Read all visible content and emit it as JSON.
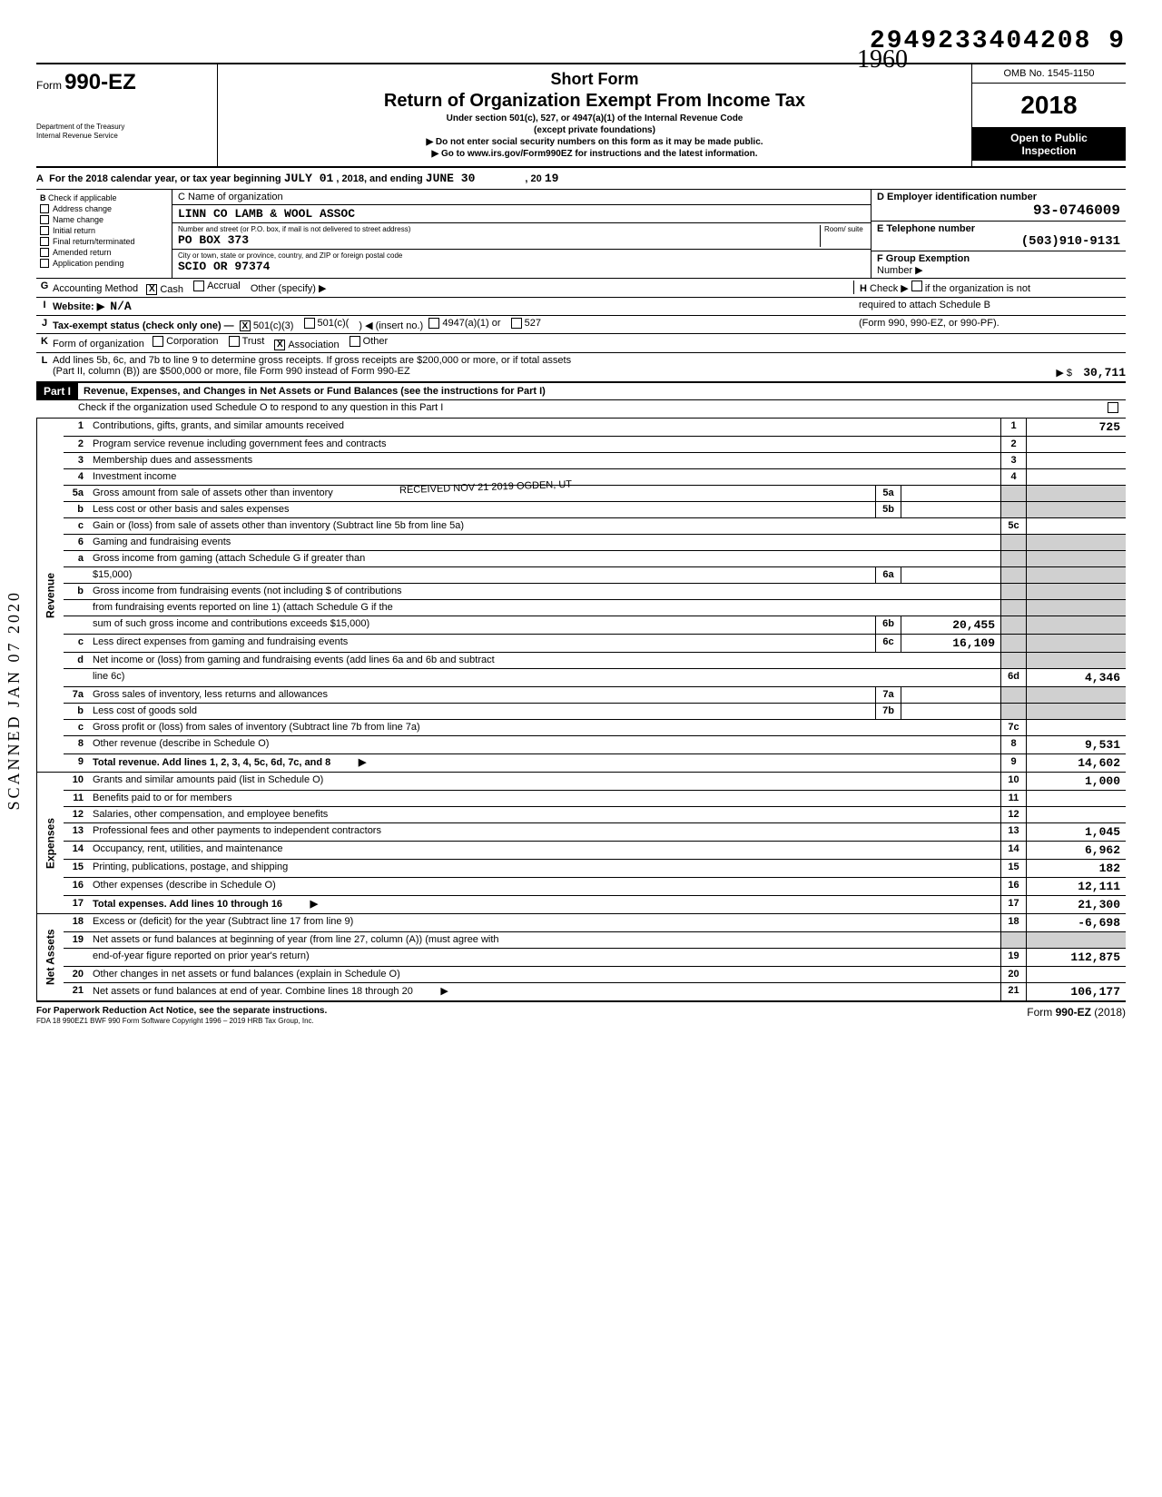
{
  "top_number": "2949233404208  9",
  "handwritten_year": "1960",
  "form": {
    "label": "Form",
    "number": "990-EZ",
    "dept1": "Department of the Treasury",
    "dept2": "Internal Revenue Service"
  },
  "header": {
    "short_form": "Short Form",
    "title": "Return of Organization Exempt From Income Tax",
    "sub1": "Under section 501(c), 527, or 4947(a)(1) of the Internal Revenue Code",
    "sub2": "(except private foundations)",
    "arrow1": "▶ Do not enter social security numbers on this form as it may be made public.",
    "arrow2": "▶ Go to www.irs.gov/Form990EZ for instructions and the latest information.",
    "omb": "OMB No. 1545-1150",
    "year": "2018",
    "open1": "Open to Public",
    "open2": "Inspection"
  },
  "lineA": {
    "prefix": "For the 2018 calendar year, or tax year beginning",
    "begin": "JULY 01",
    "mid": ", 2018, and ending",
    "end": "JUNE 30",
    "suffix": ", 20",
    "yy": "19"
  },
  "B": {
    "header": "Check if applicable",
    "items": [
      "Address change",
      "Name change",
      "Initial return",
      "Final return/terminated",
      "Amended return",
      "Application pending"
    ]
  },
  "C": {
    "label": "C  Name of organization",
    "name": "LINN CO LAMB & WOOL ASSOC",
    "street_label": "Number and street (or P.O. box, if mail is not delivered to street address)",
    "room_label": "Room/\nsuite",
    "street": "PO BOX 373",
    "city_label": "City or town, state or province, country, and ZIP or foreign postal code",
    "city": "SCIO OR 97374"
  },
  "D": {
    "label": "D  Employer identification number",
    "value": "93-0746009"
  },
  "E": {
    "label": "E  Telephone number",
    "value": "(503)910-9131"
  },
  "F": {
    "label": "F  Group Exemption",
    "label2": "Number  ▶"
  },
  "G": {
    "label": "Accounting Method",
    "cash": "Cash",
    "accrual": "Accrual",
    "other": "Other (specify) ▶"
  },
  "H": {
    "label": "Check ▶",
    "text": "if the organization is not",
    "text2": "required to attach Schedule B",
    "text3": "(Form 990, 990-EZ, or 990-PF)."
  },
  "I": {
    "label": "Website: ▶",
    "value": "N/A"
  },
  "J": {
    "label": "Tax-exempt status (check only one) —",
    "opts": [
      "501(c)(3)",
      "501(c)(",
      "◀ (insert no.)",
      "4947(a)(1) or",
      "527"
    ]
  },
  "K": {
    "label": "Form of organization",
    "opts": [
      "Corporation",
      "Trust",
      "Association",
      "Other"
    ]
  },
  "L": {
    "text1": "Add lines 5b, 6c, and 7b to line 9 to determine gross receipts. If gross receipts are $200,000 or more, or if total assets",
    "text2": "(Part II, column (B)) are $500,000 or more, file Form 990 instead of Form 990-EZ",
    "arrow": "▶  $",
    "value": "30,711"
  },
  "partI": {
    "label": "Part I",
    "title": "Revenue, Expenses, and Changes in Net Assets or Fund Balances (see the instructions for Part I)",
    "check_line": "Check if the organization used Schedule O to respond to any question in this Part I"
  },
  "stamp_received": "RECEIVED\nNOV 21 2019\nOGDEN, UT",
  "scanned": "SCANNED  JAN 07 2020",
  "revenue": {
    "label": "Revenue",
    "rows": [
      {
        "n": "1",
        "d": "Contributions, gifts, grants, and similar amounts received",
        "rn": "1",
        "v": "725"
      },
      {
        "n": "2",
        "d": "Program service revenue including government fees and contracts",
        "rn": "2",
        "v": ""
      },
      {
        "n": "3",
        "d": "Membership dues and assessments",
        "rn": "3",
        "v": ""
      },
      {
        "n": "4",
        "d": "Investment income",
        "rn": "4",
        "v": ""
      },
      {
        "n": "5a",
        "d": "Gross amount from sale of assets other than inventory",
        "mn": "5a",
        "mv": "",
        "shade": true
      },
      {
        "n": "b",
        "d": "Less cost or other basis and sales expenses",
        "mn": "5b",
        "mv": "",
        "shade": true
      },
      {
        "n": "c",
        "d": "Gain or (loss) from sale of assets other than inventory (Subtract line 5b from line 5a)",
        "rn": "5c",
        "v": ""
      },
      {
        "n": "6",
        "d": "Gaming and fundraising events"
      },
      {
        "n": "a",
        "d": "Gross income from gaming (attach Schedule G if greater than"
      },
      {
        "n": "",
        "d": "$15,000)",
        "mn": "6a",
        "mv": "",
        "shade": true
      },
      {
        "n": "b",
        "d": "Gross income from fundraising events (not including   $                          of contributions"
      },
      {
        "n": "",
        "d": "from fundraising events reported on line 1) (attach Schedule G if the"
      },
      {
        "n": "",
        "d": "sum of such gross income and contributions exceeds $15,000)",
        "mn": "6b",
        "mv": "20,455",
        "shade": true
      },
      {
        "n": "c",
        "d": "Less  direct expenses from gaming and fundraising events",
        "mn": "6c",
        "mv": "16,109",
        "shade": true
      },
      {
        "n": "d",
        "d": "Net income or (loss) from gaming and fundraising events (add lines 6a and 6b and subtract"
      },
      {
        "n": "",
        "d": "line 6c)",
        "rn": "6d",
        "v": "4,346"
      },
      {
        "n": "7a",
        "d": "Gross sales of inventory, less returns and allowances",
        "mn": "7a",
        "mv": "",
        "shade": true
      },
      {
        "n": "b",
        "d": "Less cost of goods sold",
        "mn": "7b",
        "mv": "",
        "shade": true
      },
      {
        "n": "c",
        "d": "Gross profit or (loss) from sales of inventory (Subtract line 7b from line 7a)",
        "rn": "7c",
        "v": ""
      },
      {
        "n": "8",
        "d": "Other revenue (describe in Schedule O)",
        "rn": "8",
        "v": "9,531"
      },
      {
        "n": "9",
        "d": "Total revenue. Add lines 1, 2, 3, 4, 5c, 6d, 7c, and 8",
        "bold": true,
        "arrow": "▶",
        "rn": "9",
        "v": "14,602"
      }
    ]
  },
  "expenses": {
    "label": "Expenses",
    "rows": [
      {
        "n": "10",
        "d": "Grants and similar amounts paid (list in Schedule O)",
        "rn": "10",
        "v": "1,000"
      },
      {
        "n": "11",
        "d": "Benefits paid to or for members",
        "rn": "11",
        "v": ""
      },
      {
        "n": "12",
        "d": "Salaries, other compensation, and employee benefits",
        "rn": "12",
        "v": ""
      },
      {
        "n": "13",
        "d": "Professional fees and other payments to independent contractors",
        "rn": "13",
        "v": "1,045"
      },
      {
        "n": "14",
        "d": "Occupancy, rent, utilities, and maintenance",
        "rn": "14",
        "v": "6,962"
      },
      {
        "n": "15",
        "d": "Printing, publications, postage, and shipping",
        "rn": "15",
        "v": "182"
      },
      {
        "n": "16",
        "d": "Other expenses (describe in Schedule O)",
        "rn": "16",
        "v": "12,111"
      },
      {
        "n": "17",
        "d": "Total expenses. Add lines 10 through 16",
        "bold": true,
        "arrow": "▶",
        "rn": "17",
        "v": "21,300"
      }
    ]
  },
  "netassets": {
    "label": "Net Assets",
    "rows": [
      {
        "n": "18",
        "d": "Excess or (deficit) for the year (Subtract line 17 from line 9)",
        "rn": "18",
        "v": "-6,698"
      },
      {
        "n": "19",
        "d": "Net assets or fund balances at beginning of year (from line 27, column (A)) (must agree with"
      },
      {
        "n": "",
        "d": "end-of-year figure reported on prior year's return)",
        "rn": "19",
        "v": "112,875"
      },
      {
        "n": "20",
        "d": "Other changes in net assets or fund balances (explain in Schedule O)",
        "rn": "20",
        "v": ""
      },
      {
        "n": "21",
        "d": "Net assets or fund balances at end of year. Combine lines 18 through 20",
        "arrow": "▶",
        "rn": "21",
        "v": "106,177"
      }
    ]
  },
  "footer": {
    "left": "For Paperwork Reduction Act Notice, see the separate instructions.",
    "mid": "FDA    18   990EZ1      BWF 990      Form Software Copyright 1996 – 2019 HRB Tax Group, Inc.",
    "right": "Form 990-EZ (2018)"
  }
}
